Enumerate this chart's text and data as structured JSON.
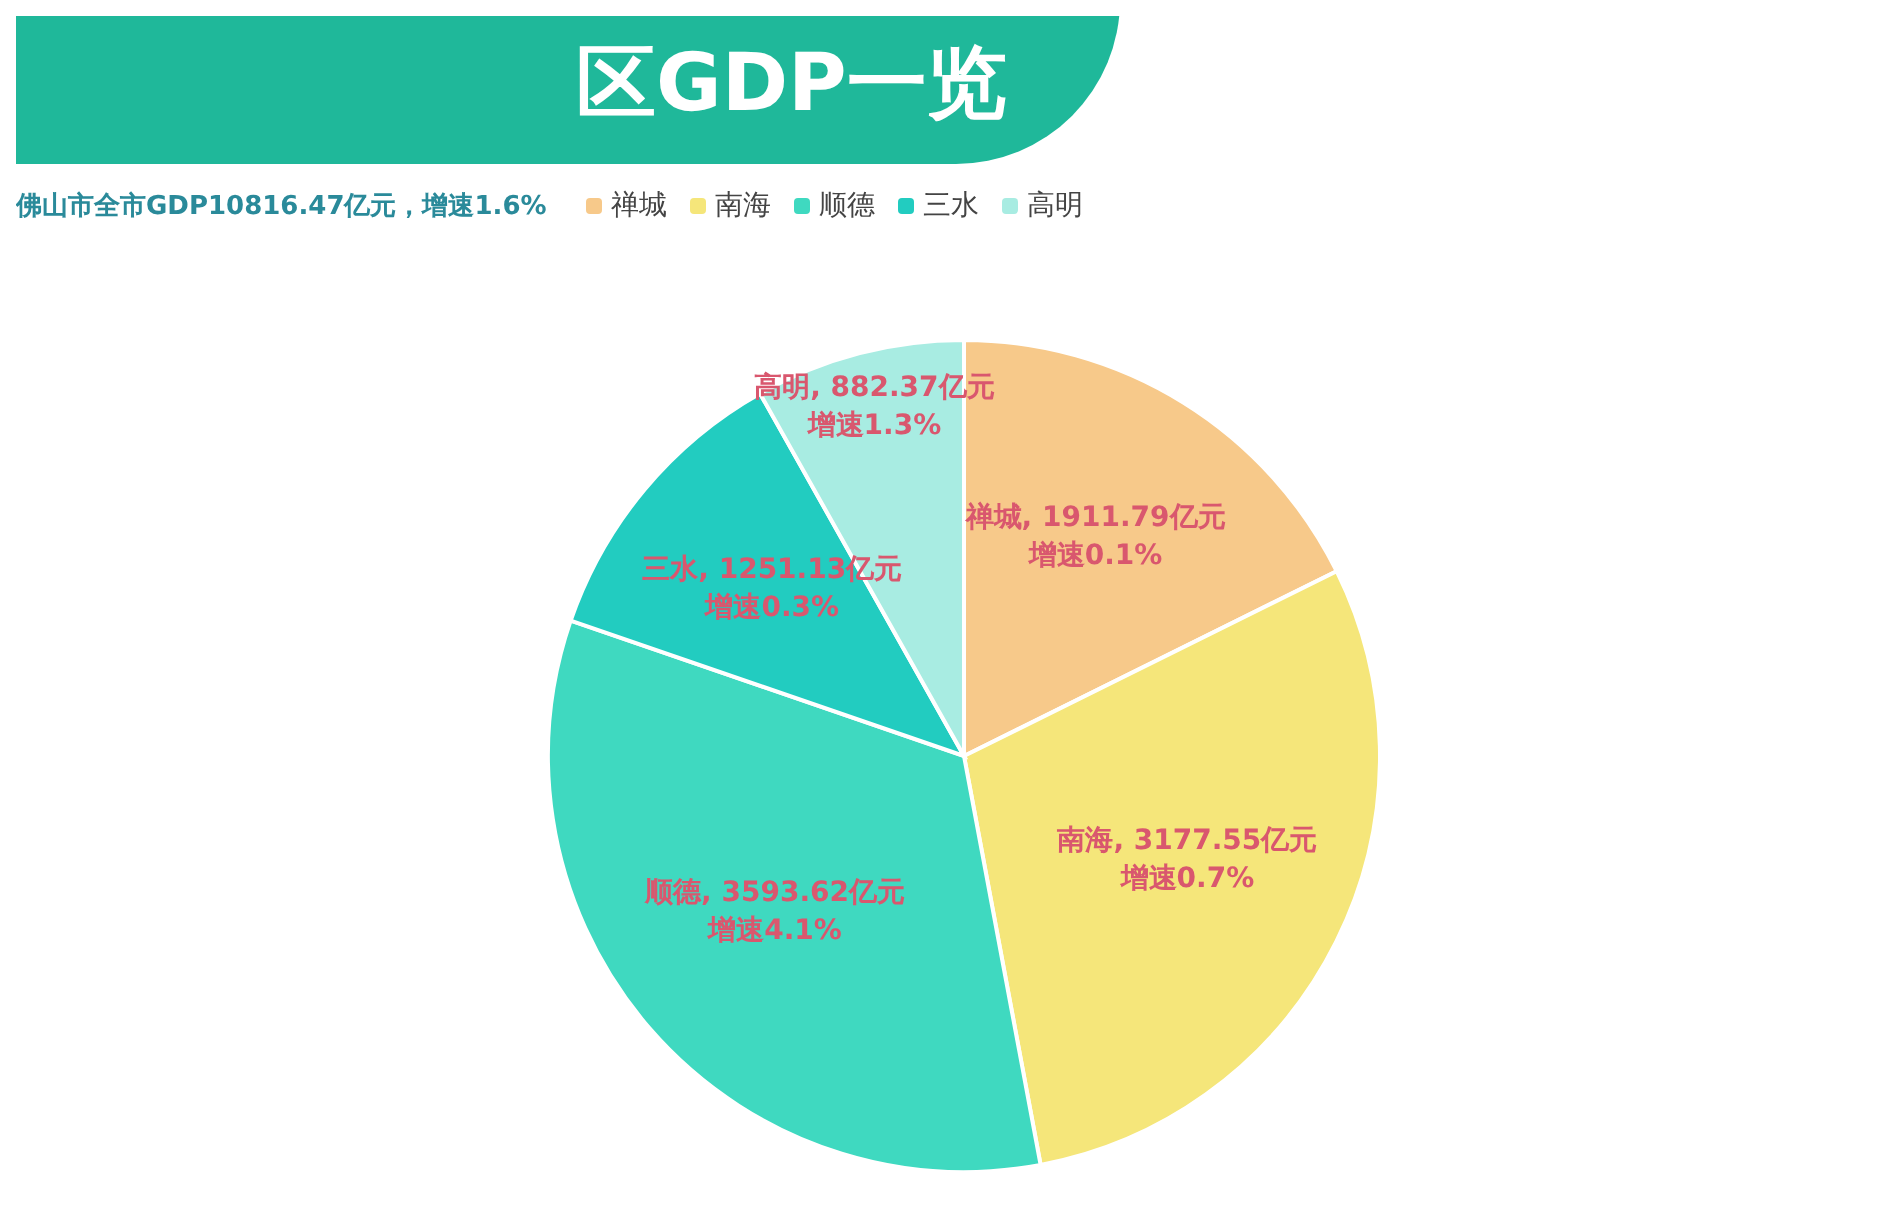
{
  "chart_data": {
    "type": "pie",
    "title": "区GDP一览",
    "subtitle": "佛山市全市GDP10816.47亿元，增速1.6%",
    "categories": [
      "禅城",
      "南海",
      "顺德",
      "三水",
      "高明"
    ],
    "values": [
      1911.79,
      3177.55,
      3593.62,
      1251.13,
      882.37
    ],
    "colors": [
      "#f7c98a",
      "#f5e67a",
      "#3fd9c0",
      "#22ccc0",
      "#a8ece2"
    ],
    "value_labels": [
      "禅城, 1911.79亿元",
      "南海, 3177.55亿元",
      "顺德, 3593.62亿元",
      "三水, 1251.13亿元",
      "高明, 882.37亿元"
    ],
    "annotations": [
      "增速0.1%",
      "增速0.7%",
      "增速4.1%",
      "增速0.3%",
      "增速1.3%"
    ],
    "legend": "top"
  }
}
